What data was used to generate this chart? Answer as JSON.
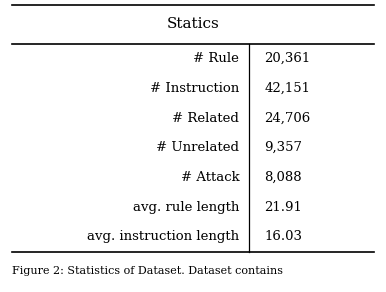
{
  "title": "Statics",
  "rows": [
    [
      "# Rule",
      "20,361"
    ],
    [
      "# Instruction",
      "42,151"
    ],
    [
      "# Related",
      "24,706"
    ],
    [
      "# Unrelated",
      "9,357"
    ],
    [
      "# Attack",
      "8,088"
    ],
    [
      "avg. rule length",
      "21.91"
    ],
    [
      "avg. instruction length",
      "16.03"
    ]
  ],
  "bg_color": "#ffffff",
  "text_color": "#000000",
  "title_fontsize": 11,
  "body_fontsize": 9.5,
  "caption_fontsize": 8,
  "caption": "Figure 2: Statistics of Dataset. Dataset contains",
  "figwidth": 3.86,
  "figheight": 2.92,
  "dpi": 100
}
